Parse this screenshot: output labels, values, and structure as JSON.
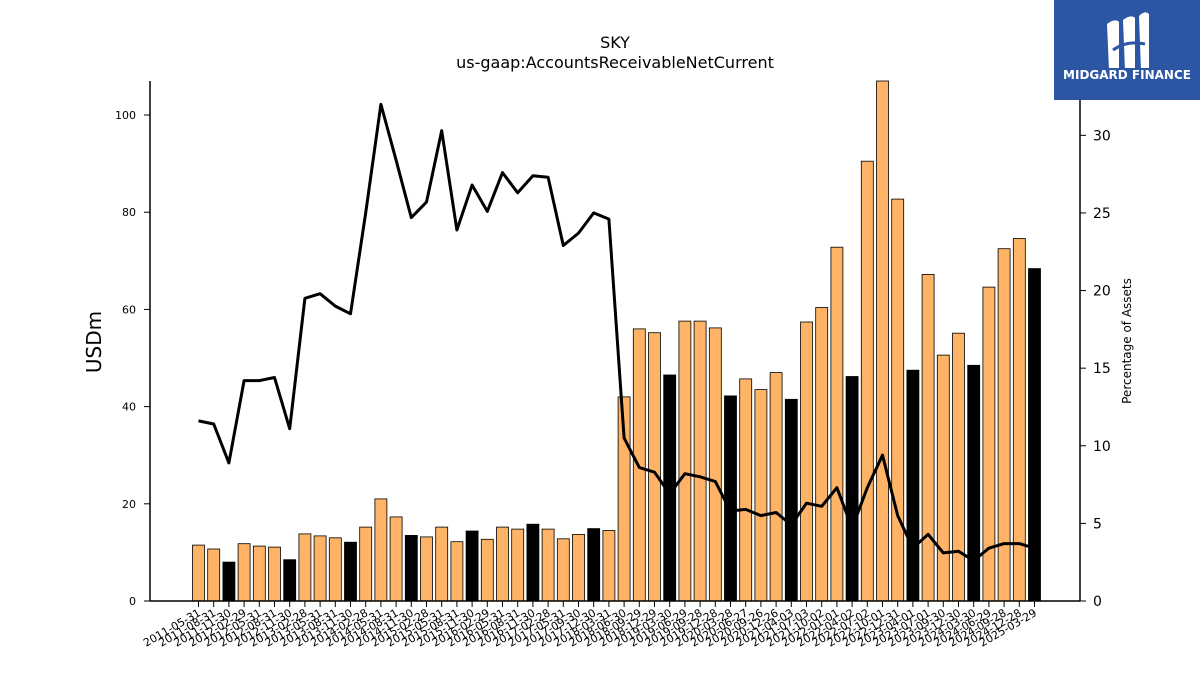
{
  "brand": {
    "name": "MIDGARD FINANCE",
    "bg_color": "#2c56a3"
  },
  "chart_data": {
    "type": "bar",
    "title": "SKY",
    "subtitle": "us-gaap:AccountsReceivableNetCurrent",
    "ylabel": "USDm",
    "y2label": "Percentage of Assets",
    "ylim": [
      0,
      107
    ],
    "y2lim": [
      0,
      33.5
    ],
    "yticks": [
      0,
      20,
      40,
      60,
      80,
      100
    ],
    "y2ticks": [
      0,
      5,
      10,
      15,
      20,
      25,
      30
    ],
    "grid": false,
    "colors": {
      "bar": "#ffb366",
      "fiscal_year_end_bar": "#000000",
      "line": "#000000"
    },
    "x_tick_labels": [
      "2011-05-31",
      "2011-08-31",
      "2011-11-30",
      "2012-02-29",
      "2012-05-31",
      "2012-08-31",
      "2012-11-30",
      "2013-02-28",
      "2013-05-31",
      "2013-08-31",
      "2013-11-30",
      "2014-02-28",
      "2014-05-31",
      "2014-08-31",
      "2014-11-30",
      "2015-02-28",
      "2015-05-31",
      "2015-08-31",
      "2015-11-30",
      "2016-02-29",
      "2016-05-31",
      "2016-08-31",
      "2016-11-30",
      "2017-02-28",
      "2017-05-31",
      "2017-09-30",
      "2017-12-30",
      "2018-03-31",
      "2018-06-30",
      "2018-09-29",
      "2018-12-29",
      "2019-03-30",
      "2019-06-29",
      "2019-09-28",
      "2019-12-28",
      "2020-03-28",
      "2020-06-27",
      "2020-09-26",
      "2020-12-26",
      "2021-04-03",
      "2021-07-03",
      "2021-10-02",
      "2022-01-01",
      "2022-04-02",
      "2022-07-02",
      "2022-10-01",
      "2022-12-31",
      "2023-04-01",
      "2023-07-01",
      "2023-09-30",
      "2023-12-30",
      "2024-03-30",
      "2024-06-29",
      "2024-09-28",
      "2024-12-28",
      "2025-03-29"
    ],
    "bar_values": [
      11.5,
      10.7,
      8.0,
      11.8,
      11.3,
      11.1,
      8.5,
      13.8,
      13.4,
      13.0,
      12.1,
      15.2,
      21.0,
      17.3,
      13.5,
      13.2,
      15.2,
      12.2,
      14.4,
      12.7,
      15.2,
      14.8,
      15.8,
      14.8,
      12.8,
      13.7,
      14.9,
      14.5,
      42.0,
      56.0,
      55.2,
      46.5,
      57.6,
      57.6,
      56.2,
      42.2,
      45.7,
      43.5,
      47.0,
      41.5,
      57.4,
      60.4,
      72.8,
      46.2,
      90.5,
      107,
      82.7,
      47.5,
      67.2,
      50.6,
      55.1,
      48.5,
      64.6,
      72.5,
      74.6,
      68.4
    ],
    "fiscal_year_end": [
      false,
      false,
      true,
      false,
      false,
      false,
      true,
      false,
      false,
      false,
      true,
      false,
      false,
      false,
      true,
      false,
      false,
      false,
      true,
      false,
      false,
      false,
      true,
      false,
      false,
      false,
      true,
      false,
      false,
      false,
      false,
      true,
      false,
      false,
      false,
      true,
      false,
      false,
      false,
      true,
      false,
      false,
      false,
      true,
      false,
      false,
      false,
      true,
      false,
      false,
      false,
      true,
      false,
      false,
      false,
      true
    ],
    "pct_of_assets": [
      11.6,
      11.4,
      8.9,
      14.2,
      14.2,
      14.4,
      11.1,
      19.5,
      19.8,
      19.0,
      18.5,
      25.0,
      32.0,
      28.4,
      24.7,
      25.7,
      30.3,
      23.9,
      26.8,
      25.1,
      27.6,
      26.3,
      27.4,
      27.3,
      22.9,
      23.7,
      25.0,
      24.6,
      10.5,
      8.6,
      8.3,
      6.9,
      8.2,
      8.0,
      7.7,
      5.8,
      5.9,
      5.5,
      5.7,
      4.9,
      6.3,
      6.1,
      7.3,
      4.7,
      7.3,
      9.4,
      5.5,
      3.4,
      4.3,
      3.1,
      3.2,
      2.6,
      3.4,
      3.7,
      3.7,
      3.4
    ]
  }
}
